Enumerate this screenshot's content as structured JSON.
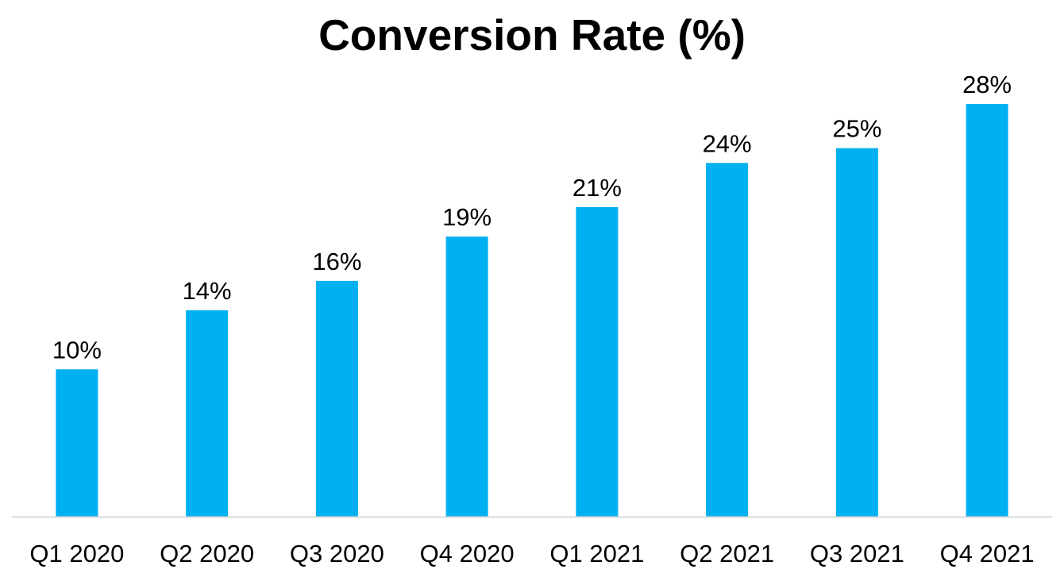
{
  "chart_data": {
    "type": "bar",
    "title": "Conversion Rate (%)",
    "xlabel": "",
    "ylabel": "",
    "categories": [
      "Q1 2020",
      "Q2 2020",
      "Q3 2020",
      "Q4 2020",
      "Q1 2021",
      "Q2 2021",
      "Q3 2021",
      "Q4 2021"
    ],
    "values": [
      10,
      14,
      16,
      19,
      21,
      24,
      25,
      28
    ],
    "data_labels": [
      "10%",
      "14%",
      "16%",
      "19%",
      "21%",
      "24%",
      "25%",
      "28%"
    ],
    "ylim": [
      0,
      28
    ],
    "grid": false,
    "legend": "none",
    "bar_color": "#00B0F0",
    "axis_color": "#D9D9D9"
  }
}
